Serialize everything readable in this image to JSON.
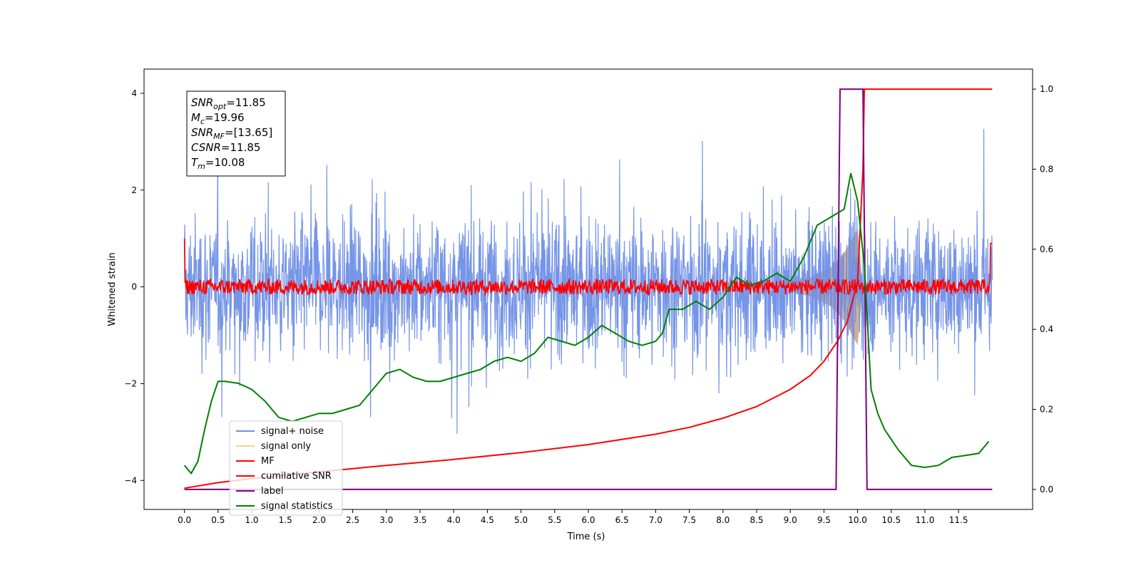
{
  "chart_data": {
    "type": "line",
    "xlabel": "Time (s)",
    "ylabel": "Whitened strain",
    "xlim": [
      -0.6,
      12.6
    ],
    "ylim": [
      -4.6,
      4.5
    ],
    "y2lim": [
      -0.05,
      1.05
    ],
    "x_ticks": [
      "0.0",
      "0.5",
      "1.0",
      "1.5",
      "2.0",
      "2.5",
      "3.0",
      "3.5",
      "4.0",
      "4.5",
      "5.0",
      "5.5",
      "6.0",
      "6.5",
      "7.0",
      "7.5",
      "8.0",
      "8.5",
      "9.0",
      "9.5",
      "10.0",
      "10.5",
      "11.0",
      "11.5"
    ],
    "y_ticks": [
      "4",
      "2",
      "0",
      "−2",
      "−4"
    ],
    "y2_ticks": [
      "1.0",
      "0.8",
      "0.6",
      "0.4",
      "0.2",
      "0.0"
    ],
    "grid": false,
    "legend_position": "lower-left",
    "annotation_lines": [
      {
        "base": "SNR",
        "sub": "opt",
        "text": "=11.85"
      },
      {
        "base": "M",
        "sub": "c",
        "text": "=19.96"
      },
      {
        "base": "SNR",
        "sub": "MF",
        "text": "=[13.65]"
      },
      {
        "base": "CSNR",
        "sub": "",
        "text": "=11.85"
      },
      {
        "base": "T",
        "sub": "m",
        "text": "=10.08"
      }
    ],
    "series": [
      {
        "name": "signal+ noise",
        "color": "#6f8fe6",
        "axis": "left",
        "description": "noise band approx ±2.5 with spikes up to 4"
      },
      {
        "name": "signal only",
        "color": "#f5d08a",
        "axis": "left",
        "fill": "#c8a27a",
        "envelope_x": [
          9.0,
          9.3,
          9.6,
          9.8,
          10.0,
          10.08
        ],
        "envelope_y": [
          0.1,
          0.2,
          0.4,
          0.7,
          1.2,
          0.0
        ]
      },
      {
        "name": "MF",
        "color": "#ff0000",
        "axis": "left",
        "description": "fluctuates near 0 with amplitude ~0.15"
      },
      {
        "name": "cumilative SNR",
        "color": "#ff0000",
        "axis": "right",
        "x": [
          0.0,
          0.5,
          1.0,
          2.0,
          3.0,
          4.0,
          5.0,
          6.0,
          7.0,
          7.5,
          8.0,
          8.5,
          9.0,
          9.3,
          9.5,
          9.7,
          9.85,
          10.0,
          10.08,
          10.1,
          11.0,
          12.0
        ],
        "y": [
          0.003,
          0.017,
          0.027,
          0.044,
          0.06,
          0.075,
          0.092,
          0.112,
          0.138,
          0.155,
          0.178,
          0.207,
          0.25,
          0.285,
          0.32,
          0.37,
          0.42,
          0.52,
          0.8,
          1.0,
          1.0,
          1.0
        ]
      },
      {
        "name": "label",
        "color": "#800080",
        "axis": "right",
        "x": [
          0.0,
          9.68,
          9.74,
          10.08,
          10.14,
          12.0
        ],
        "y": [
          0.0,
          0.0,
          1.0,
          1.0,
          0.0,
          0.0
        ]
      },
      {
        "name": "signal statistics",
        "color": "#008000",
        "axis": "right",
        "x": [
          0.0,
          0.1,
          0.2,
          0.3,
          0.4,
          0.5,
          0.6,
          0.8,
          1.0,
          1.2,
          1.4,
          1.6,
          1.8,
          2.0,
          2.2,
          2.4,
          2.6,
          2.8,
          3.0,
          3.2,
          3.4,
          3.6,
          3.8,
          4.0,
          4.2,
          4.4,
          4.6,
          4.8,
          5.0,
          5.2,
          5.4,
          5.6,
          5.8,
          6.0,
          6.2,
          6.4,
          6.6,
          6.8,
          7.0,
          7.1,
          7.2,
          7.4,
          7.6,
          7.8,
          8.0,
          8.2,
          8.4,
          8.6,
          8.8,
          9.0,
          9.2,
          9.4,
          9.6,
          9.8,
          9.9,
          10.0,
          10.1,
          10.2,
          10.3,
          10.4,
          10.6,
          10.8,
          11.0,
          11.2,
          11.4,
          11.6,
          11.8,
          11.95
        ],
        "y": [
          0.06,
          0.04,
          0.07,
          0.15,
          0.22,
          0.27,
          0.27,
          0.265,
          0.25,
          0.22,
          0.18,
          0.17,
          0.18,
          0.19,
          0.19,
          0.2,
          0.21,
          0.25,
          0.29,
          0.3,
          0.28,
          0.27,
          0.27,
          0.28,
          0.29,
          0.3,
          0.32,
          0.33,
          0.32,
          0.34,
          0.38,
          0.37,
          0.36,
          0.38,
          0.41,
          0.39,
          0.37,
          0.36,
          0.37,
          0.39,
          0.45,
          0.45,
          0.47,
          0.45,
          0.48,
          0.53,
          0.51,
          0.52,
          0.54,
          0.52,
          0.58,
          0.66,
          0.68,
          0.7,
          0.79,
          0.72,
          0.56,
          0.25,
          0.19,
          0.15,
          0.1,
          0.06,
          0.055,
          0.06,
          0.08,
          0.085,
          0.09,
          0.12
        ]
      }
    ]
  }
}
